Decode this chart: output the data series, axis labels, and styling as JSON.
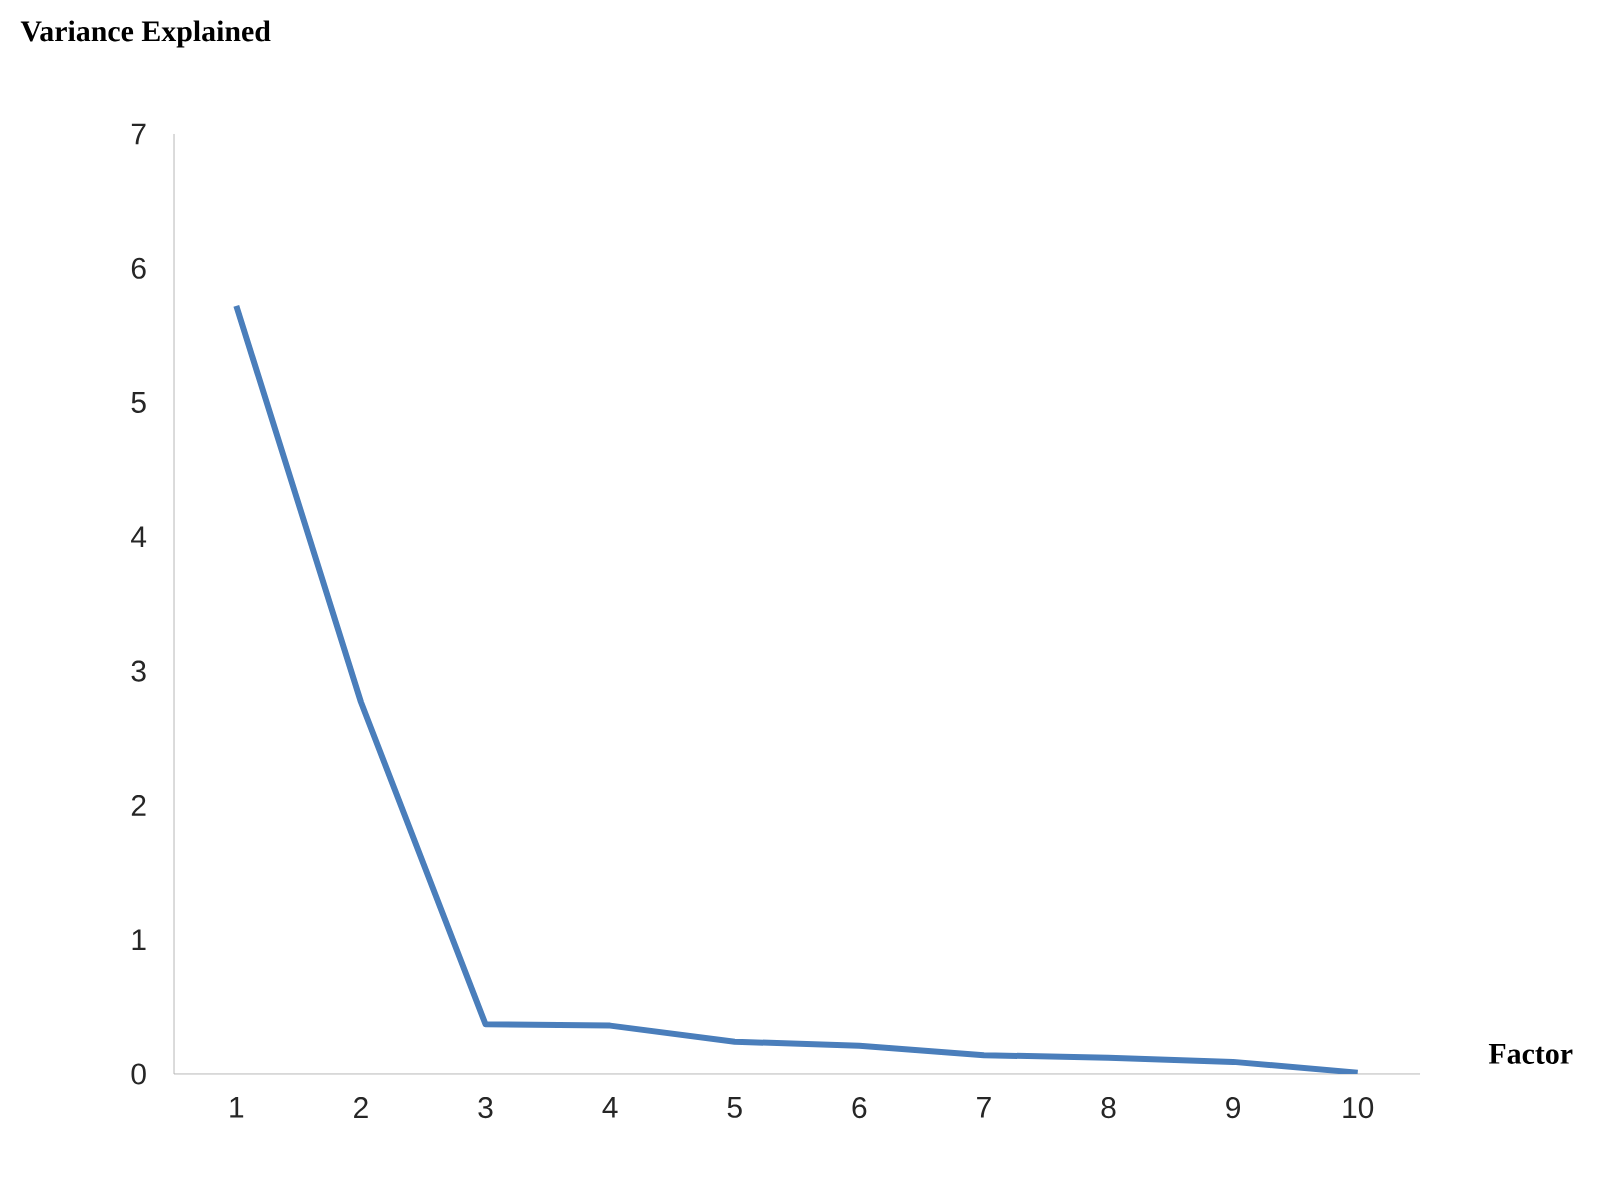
{
  "chart_data": {
    "type": "line",
    "xlabel": "Factor",
    "ylabel": "Variance Explained",
    "categories": [
      "1",
      "2",
      "3",
      "4",
      "5",
      "6",
      "7",
      "8",
      "9",
      "10"
    ],
    "series": [
      {
        "color": "#4a7ebb",
        "values": [
          5.72,
          2.77,
          0.37,
          0.36,
          0.24,
          0.21,
          0.14,
          0.12,
          0.09,
          0.01
        ]
      }
    ],
    "ylim": [
      0,
      7
    ],
    "yticks": [
      0,
      1,
      2,
      3,
      4,
      5,
      6,
      7
    ],
    "grid": false,
    "marker": "none",
    "line_style": "solid"
  }
}
